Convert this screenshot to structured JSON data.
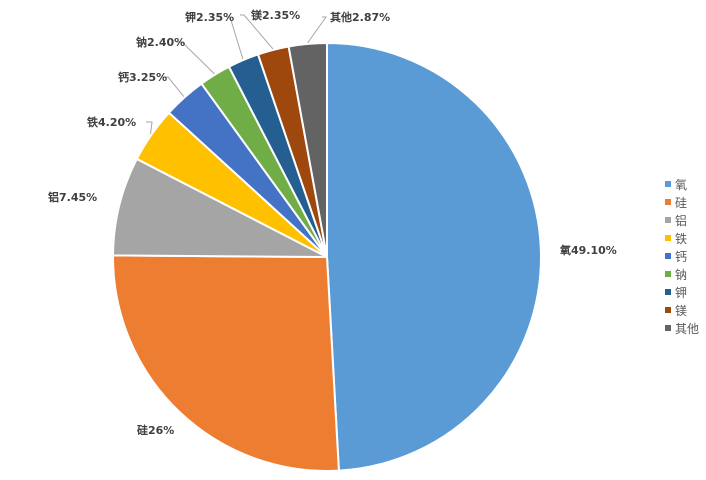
{
  "chart_data": {
    "type": "pie",
    "title": "",
    "start_angle": "top",
    "direction": "clockwise",
    "legend_position": "right",
    "categories": [
      "氧",
      "硅",
      "铝",
      "铁",
      "钙",
      "钠",
      "钾",
      "镁",
      "其他"
    ],
    "values": [
      49.1,
      26,
      7.45,
      4.2,
      3.25,
      2.4,
      2.35,
      2.35,
      2.87
    ],
    "data_labels": [
      "氧49.10%",
      "硅26%",
      "铝7.45%",
      "铁4.20%",
      "钙3.25%",
      "钠2.40%",
      "钾2.35%",
      "镁2.35%",
      "其他2.87%"
    ],
    "colors": [
      "#5B9BD5",
      "#ED7D31",
      "#A5A5A5",
      "#FFC000",
      "#4472C4",
      "#70AD47",
      "#255E91",
      "#9E480E",
      "#636363"
    ]
  }
}
